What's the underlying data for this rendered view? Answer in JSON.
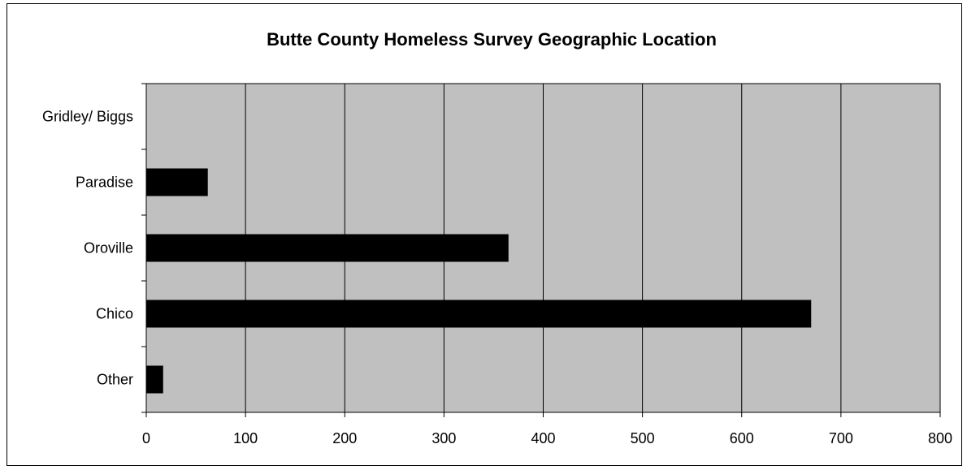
{
  "chart_data": {
    "type": "bar",
    "orientation": "horizontal",
    "title": "Butte County Homeless Survey Geographic Location",
    "categories": [
      "Gridley/ Biggs",
      "Paradise",
      "Oroville",
      "Chico",
      "Other"
    ],
    "values": [
      0,
      62,
      365,
      670,
      17
    ],
    "xlim": [
      0,
      800
    ],
    "xticks": [
      "0",
      "100",
      "200",
      "300",
      "400",
      "500",
      "600",
      "700",
      "800"
    ],
    "grid": "vertical",
    "colors": {
      "bar": "#000000",
      "plot_bg": "#c0c0c0",
      "grid": "#000000"
    }
  }
}
